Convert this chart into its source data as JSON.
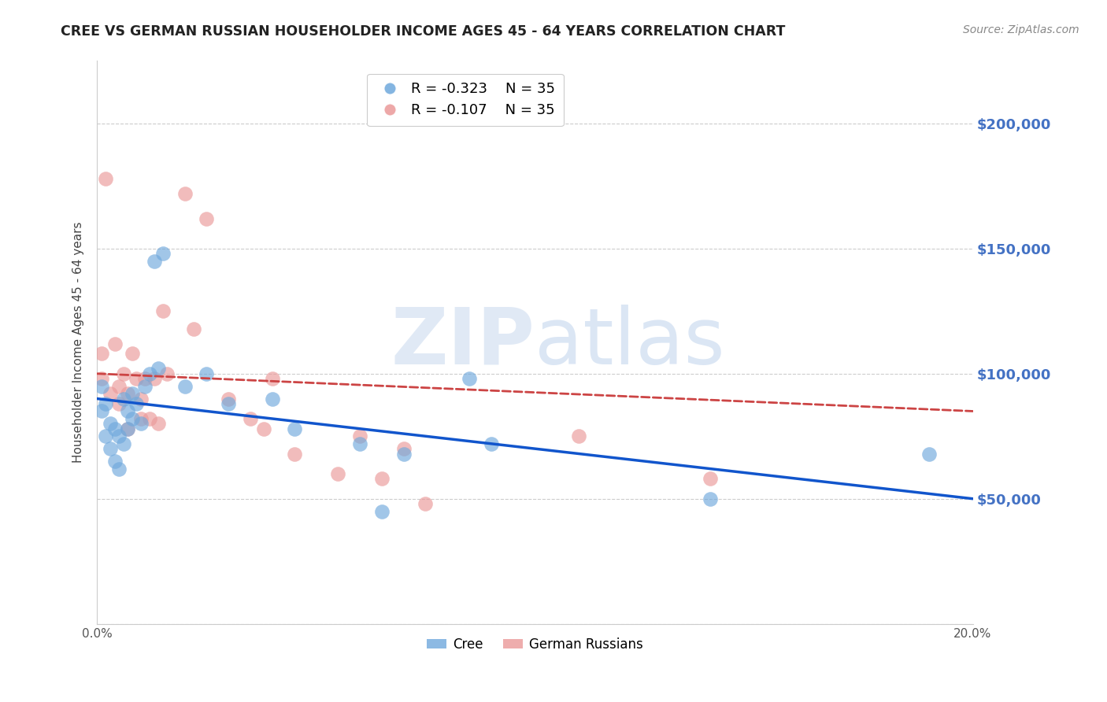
{
  "title": "CREE VS GERMAN RUSSIAN HOUSEHOLDER INCOME AGES 45 - 64 YEARS CORRELATION CHART",
  "source": "Source: ZipAtlas.com",
  "ylabel": "Householder Income Ages 45 - 64 years",
  "x_min": 0.0,
  "x_max": 0.2,
  "y_min": 0,
  "y_max": 225000,
  "yticks": [
    0,
    50000,
    100000,
    150000,
    200000
  ],
  "ytick_labels": [
    "",
    "$50,000",
    "$100,000",
    "$150,000",
    "$200,000"
  ],
  "xticks": [
    0.0,
    0.025,
    0.05,
    0.075,
    0.1,
    0.125,
    0.15,
    0.175,
    0.2
  ],
  "xtick_labels": [
    "0.0%",
    "",
    "",
    "",
    "",
    "",
    "",
    "",
    "20.0%"
  ],
  "cree_color": "#6fa8dc",
  "german_color": "#ea9999",
  "trendline_cree_color": "#1155cc",
  "trendline_german_color": "#cc4444",
  "legend_R_cree": "R = -0.323",
  "legend_N_cree": "N = 35",
  "legend_R_german": "R = -0.107",
  "legend_N_german": "N = 35",
  "watermark_zip": "ZIP",
  "watermark_atlas": "atlas",
  "cree_x": [
    0.001,
    0.001,
    0.002,
    0.002,
    0.003,
    0.003,
    0.004,
    0.004,
    0.005,
    0.005,
    0.006,
    0.006,
    0.007,
    0.007,
    0.008,
    0.008,
    0.009,
    0.01,
    0.011,
    0.012,
    0.013,
    0.014,
    0.015,
    0.02,
    0.025,
    0.03,
    0.04,
    0.045,
    0.06,
    0.065,
    0.07,
    0.085,
    0.09,
    0.14,
    0.19
  ],
  "cree_y": [
    95000,
    85000,
    88000,
    75000,
    80000,
    70000,
    78000,
    65000,
    75000,
    62000,
    90000,
    72000,
    85000,
    78000,
    92000,
    82000,
    88000,
    80000,
    95000,
    100000,
    145000,
    102000,
    148000,
    95000,
    100000,
    88000,
    90000,
    78000,
    72000,
    45000,
    68000,
    98000,
    72000,
    50000,
    68000
  ],
  "german_x": [
    0.001,
    0.001,
    0.002,
    0.003,
    0.004,
    0.005,
    0.005,
    0.006,
    0.007,
    0.007,
    0.008,
    0.009,
    0.01,
    0.01,
    0.011,
    0.012,
    0.013,
    0.014,
    0.015,
    0.016,
    0.02,
    0.022,
    0.025,
    0.03,
    0.035,
    0.038,
    0.04,
    0.045,
    0.055,
    0.06,
    0.065,
    0.07,
    0.075,
    0.11,
    0.14
  ],
  "german_y": [
    98000,
    108000,
    178000,
    92000,
    112000,
    95000,
    88000,
    100000,
    92000,
    78000,
    108000,
    98000,
    90000,
    82000,
    98000,
    82000,
    98000,
    80000,
    125000,
    100000,
    172000,
    118000,
    162000,
    90000,
    82000,
    78000,
    98000,
    68000,
    60000,
    75000,
    58000,
    70000,
    48000,
    75000,
    58000
  ]
}
